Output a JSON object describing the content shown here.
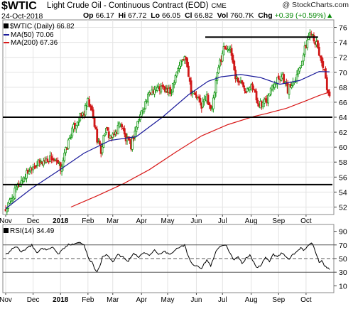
{
  "header": {
    "symbol": "$WTIC",
    "title": "Light Crude Oil - Continuous Contract (EOD)",
    "exchange": "CME",
    "date": "24-Oct-2018",
    "watermark": "@ StockCharts.com",
    "open_label": "Op",
    "open": "66.17",
    "high_label": "Hi",
    "high": "67.72",
    "low_label": "Lo",
    "low": "66.05",
    "close_label": "Cl",
    "close": "66.82",
    "vol_label": "Vol",
    "volume": "760.7K",
    "chg_label": "Chg",
    "change": "+0.39 (+0.59%)",
    "change_arrow": "▲"
  },
  "legend": {
    "price": "$WTIC (Daily) 66.82",
    "ma50": "MA(50) 70.06",
    "ma200": "MA(200) 67.36",
    "rsi": "RSI(14) 34.49"
  },
  "colors": {
    "up": "#1a9a1a",
    "down": "#d01818",
    "ma50": "#1a1a9a",
    "ma200": "#d81818",
    "grid": "#e3e3e3",
    "rsi_line": "#000000",
    "rsi_fill": "#8a8a8a",
    "rsi_mid": "#555555"
  },
  "chart_data": [
    {
      "type": "candlestick",
      "title": "$WTIC (Daily) 66.82",
      "x_tick_labels": [
        "Nov",
        "Dec",
        "2018",
        "Feb",
        "Mar",
        "Apr",
        "May",
        "Jun",
        "Jul",
        "Aug",
        "Sep",
        "Oct"
      ],
      "y_ticks": [
        52,
        54,
        56,
        58,
        60,
        62,
        64,
        66,
        68,
        70,
        72,
        74,
        76
      ],
      "ylim": [
        51,
        77
      ],
      "grid": true,
      "series": [
        {
          "name": "$WTIC (Daily) 66.82",
          "kind": "price",
          "keypoints": [
            [
              0,
              51.6
            ],
            [
              10,
              55.0
            ],
            [
              20,
              57.5
            ],
            [
              25,
              57.8
            ],
            [
              35,
              58.6
            ],
            [
              42,
              57.2
            ],
            [
              50,
              61.8
            ],
            [
              55,
              63.6
            ],
            [
              60,
              64.6
            ],
            [
              63,
              66.0
            ],
            [
              66,
              64.7
            ],
            [
              70,
              61.2
            ],
            [
              73,
              59.4
            ],
            [
              76,
              62.2
            ],
            [
              82,
              61.2
            ],
            [
              88,
              63.4
            ],
            [
              92,
              61.0
            ],
            [
              96,
              60.2
            ],
            [
              100,
              62.8
            ],
            [
              105,
              65.2
            ],
            [
              112,
              67.7
            ],
            [
              120,
              67.9
            ],
            [
              126,
              67.2
            ],
            [
              130,
              69.8
            ],
            [
              134,
              71.4
            ],
            [
              138,
              72.1
            ],
            [
              142,
              67.6
            ],
            [
              146,
              66.7
            ],
            [
              150,
              65.6
            ],
            [
              154,
              66.7
            ],
            [
              158,
              64.9
            ],
            [
              161,
              68.6
            ],
            [
              164,
              71.4
            ],
            [
              167,
              73.2
            ],
            [
              170,
              73.5
            ],
            [
              173,
              72.3
            ],
            [
              176,
              69.4
            ],
            [
              180,
              68.6
            ],
            [
              184,
              67.8
            ],
            [
              188,
              68.7
            ],
            [
              192,
              66.4
            ],
            [
              196,
              65.5
            ],
            [
              200,
              66.3
            ],
            [
              204,
              68.2
            ],
            [
              208,
              69.3
            ],
            [
              212,
              69.6
            ],
            [
              216,
              67.6
            ],
            [
              220,
              68.8
            ],
            [
              224,
              70.2
            ],
            [
              228,
              72.4
            ],
            [
              232,
              74.8
            ],
            [
              234,
              75.6
            ],
            [
              237,
              74.2
            ],
            [
              241,
              71.9
            ],
            [
              244,
              70.4
            ],
            [
              246,
              67.2
            ],
            [
              248,
              66.8
            ]
          ]
        },
        {
          "name": "MA(50) 70.06",
          "kind": "line",
          "points": [
            [
              0,
              51.8
            ],
            [
              20,
              54.5
            ],
            [
              40,
              56.8
            ],
            [
              60,
              59.2
            ],
            [
              80,
              60.9
            ],
            [
              100,
              61.4
            ],
            [
              120,
              64.0
            ],
            [
              140,
              67.0
            ],
            [
              155,
              68.8
            ],
            [
              165,
              69.4
            ],
            [
              180,
              69.7
            ],
            [
              195,
              69.3
            ],
            [
              210,
              68.4
            ],
            [
              225,
              68.9
            ],
            [
              240,
              70.1
            ],
            [
              248,
              70.06
            ]
          ]
        },
        {
          "name": "MA(200) 67.36",
          "kind": "line",
          "points": [
            [
              50,
              52.0
            ],
            [
              70,
              53.5
            ],
            [
              90,
              55.1
            ],
            [
              110,
              57.0
            ],
            [
              130,
              59.3
            ],
            [
              150,
              61.5
            ],
            [
              170,
              63.0
            ],
            [
              190,
              64.1
            ],
            [
              200,
              64.5
            ],
            [
              215,
              65.2
            ],
            [
              230,
              66.2
            ],
            [
              240,
              66.9
            ],
            [
              248,
              67.36
            ]
          ]
        }
      ],
      "horizontal_lines": [
        {
          "y": 64.0,
          "x_from": 0,
          "x_to": 248
        },
        {
          "y": 55.0,
          "x_from": 0,
          "x_to": 248
        },
        {
          "y": 74.7,
          "x_from": 155,
          "x_to": 237
        }
      ]
    },
    {
      "type": "line",
      "title": "RSI(14) 34.49",
      "x_tick_labels": [
        "Nov",
        "Dec",
        "2018",
        "Feb",
        "Mar",
        "Apr",
        "May",
        "Jun",
        "Jul",
        "Aug",
        "Sep",
        "Oct"
      ],
      "y_ticks": [
        10,
        30,
        50,
        70,
        90
      ],
      "ylim": [
        0,
        100
      ],
      "reference_lines": [
        70,
        50,
        30
      ],
      "series": [
        {
          "name": "RSI(14) 34.49",
          "points": [
            [
              0,
              55
            ],
            [
              4,
              62
            ],
            [
              8,
              68
            ],
            [
              12,
              60
            ],
            [
              16,
              64
            ],
            [
              20,
              70
            ],
            [
              24,
              58
            ],
            [
              28,
              66
            ],
            [
              32,
              62
            ],
            [
              36,
              68
            ],
            [
              40,
              56
            ],
            [
              44,
              64
            ],
            [
              48,
              70
            ],
            [
              52,
              72
            ],
            [
              56,
              74
            ],
            [
              60,
              70
            ],
            [
              62,
              60
            ],
            [
              64,
              48
            ],
            [
              66,
              46
            ],
            [
              68,
              35
            ],
            [
              70,
              30
            ],
            [
              72,
              38
            ],
            [
              74,
              52
            ],
            [
              78,
              56
            ],
            [
              82,
              44
            ],
            [
              86,
              56
            ],
            [
              90,
              52
            ],
            [
              94,
              46
            ],
            [
              98,
              58
            ],
            [
              102,
              52
            ],
            [
              106,
              60
            ],
            [
              110,
              56
            ],
            [
              114,
              62
            ],
            [
              118,
              56
            ],
            [
              122,
              60
            ],
            [
              126,
              56
            ],
            [
              130,
              64
            ],
            [
              134,
              68
            ],
            [
              137,
              70
            ],
            [
              140,
              52
            ],
            [
              143,
              42
            ],
            [
              146,
              40
            ],
            [
              150,
              36
            ],
            [
              154,
              48
            ],
            [
              157,
              40
            ],
            [
              160,
              56
            ],
            [
              163,
              66
            ],
            [
              166,
              70
            ],
            [
              169,
              68
            ],
            [
              172,
              56
            ],
            [
              175,
              48
            ],
            [
              178,
              54
            ],
            [
              181,
              42
            ],
            [
              184,
              50
            ],
            [
              187,
              56
            ],
            [
              190,
              44
            ],
            [
              193,
              36
            ],
            [
              196,
              42
            ],
            [
              199,
              52
            ],
            [
              202,
              46
            ],
            [
              205,
              56
            ],
            [
              208,
              52
            ],
            [
              211,
              58
            ],
            [
              214,
              54
            ],
            [
              217,
              48
            ],
            [
              220,
              56
            ],
            [
              223,
              60
            ],
            [
              226,
              66
            ],
            [
              229,
              62
            ],
            [
              232,
              70
            ],
            [
              234,
              74
            ],
            [
              236,
              68
            ],
            [
              238,
              56
            ],
            [
              240,
              44
            ],
            [
              242,
              46
            ],
            [
              244,
              40
            ],
            [
              246,
              36
            ],
            [
              248,
              34.49
            ]
          ]
        }
      ]
    }
  ]
}
